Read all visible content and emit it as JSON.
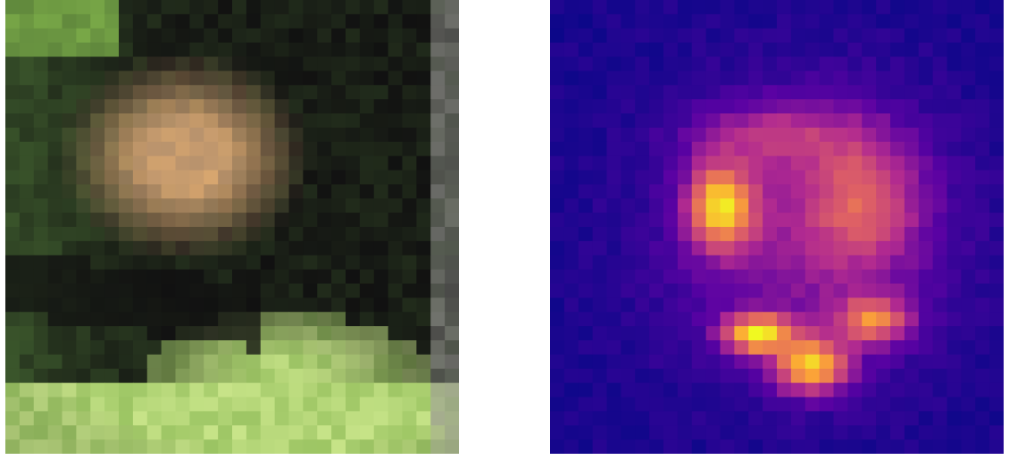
{
  "figure": {
    "panels": [
      {
        "id": "input",
        "kind": "pixelated-photo",
        "subject": "face-like blob",
        "palette": {
          "skin_highlight": "#d7a66f",
          "skin_mid": "#b9936d",
          "shadow": "#111111",
          "foliage": "#7fb04a",
          "lime": "#c9e58a",
          "dark_green": "#3f5d2e"
        }
      },
      {
        "id": "heatmap",
        "kind": "activation-heatmap",
        "colormap": "plasma",
        "palette": {
          "low": "#0b0789",
          "low_mid": "#5a02a3",
          "mid": "#b12a90",
          "high_mid": "#e16462",
          "high": "#fca636",
          "peak": "#f0f921"
        }
      }
    ]
  }
}
